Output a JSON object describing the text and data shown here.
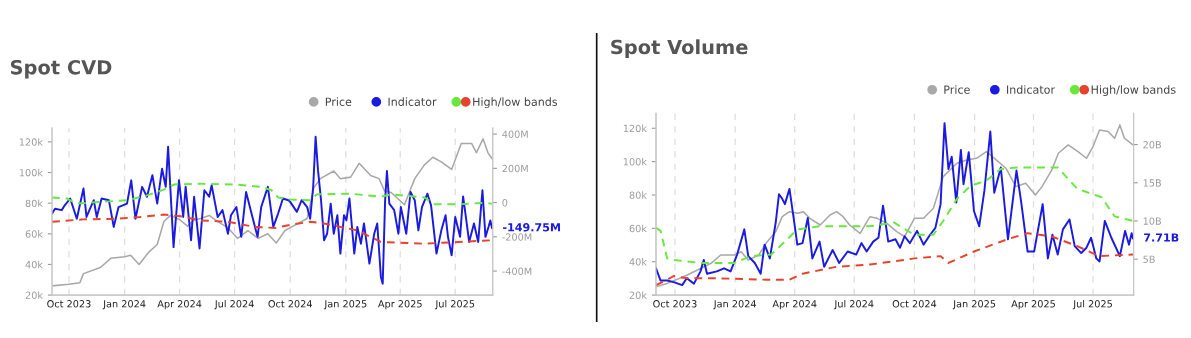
{
  "chart_data": [
    {
      "type": "line",
      "title": "Spot CVD",
      "xlim": [
        "2023-09-03",
        "2025-09-01"
      ],
      "xticks": [
        {
          "value": "2023-10-01",
          "label": "Oct 2023"
        },
        {
          "value": "2024-01-01",
          "label": "Jan 2024"
        },
        {
          "value": "2024-04-01",
          "label": "Apr 2024"
        },
        {
          "value": "2024-07-01",
          "label": "Jul 2024"
        },
        {
          "value": "2024-10-01",
          "label": "Oct 2024"
        },
        {
          "value": "2025-01-01",
          "label": "Jan 2025"
        },
        {
          "value": "2025-04-01",
          "label": "Apr 2025"
        },
        {
          "value": "2025-07-01",
          "label": "Jul 2025"
        }
      ],
      "ylim": [
        20,
        129
      ],
      "yticks": [
        {
          "value": 20,
          "label": "20k"
        },
        {
          "value": 40,
          "label": "40k"
        },
        {
          "value": 60,
          "label": "60k"
        },
        {
          "value": 80,
          "label": "80k"
        },
        {
          "value": 100,
          "label": "100k"
        },
        {
          "value": 120,
          "label": "120k"
        }
      ],
      "y2lim": [
        -540,
        435
      ],
      "y2ticks": [
        {
          "value": -400,
          "label": "-400M"
        },
        {
          "value": -200,
          "label": "-200M"
        },
        0,
        {
          "value": 200,
          "label": "200M"
        },
        {
          "value": 400,
          "label": "400M"
        }
      ],
      "grid": "x",
      "legend": "top right",
      "annotations": [
        "-149.75M"
      ],
      "series": [
        {
          "name": "Price",
          "color": "#a8a8a8",
          "x": [
            "2023-09-03",
            "2023-10-01",
            "2023-10-19",
            "2023-10-25",
            "2023-11-22",
            "2023-12-09",
            "2024-01-01",
            "2024-01-11",
            "2024-01-25",
            "2024-02-10",
            "2024-02-24",
            "2024-03-06",
            "2024-03-17",
            "2024-04-02",
            "2024-04-14",
            "2024-04-25",
            "2024-05-06",
            "2024-05-20",
            "2024-06-03",
            "2024-06-20",
            "2024-07-06",
            "2024-07-23",
            "2024-08-09",
            "2024-08-25",
            "2024-09-08",
            "2024-09-22",
            "2024-10-01",
            "2024-10-29",
            "2024-11-09",
            "2024-11-20",
            "2024-12-12",
            "2024-12-23",
            "2025-01-09",
            "2025-01-23",
            "2025-02-11",
            "2025-02-25",
            "2025-03-06",
            "2025-03-17",
            "2025-04-08",
            "2025-04-25",
            "2025-05-11",
            "2025-05-25",
            "2025-06-08",
            "2025-06-25",
            "2025-07-11",
            "2025-07-28",
            "2025-08-05",
            "2025-08-16",
            "2025-08-24",
            "2025-08-31"
          ],
          "values": [
            26,
            27,
            28,
            34,
            38,
            44,
            45,
            46,
            40,
            48,
            53,
            68,
            72,
            69,
            65,
            69,
            70,
            72,
            68,
            64,
            57,
            62,
            57,
            60,
            54,
            62,
            64,
            70,
            90,
            96,
            101,
            96,
            97,
            106,
            98,
            96,
            88,
            87,
            79,
            96,
            105,
            110,
            107,
            102,
            119,
            119,
            113,
            122,
            113,
            109
          ]
        },
        {
          "name": "Indicator",
          "color": "#1a1ae0",
          "axis": "y2",
          "x": [
            "2023-09-03",
            "2023-09-08",
            "2023-09-19",
            "2023-09-24",
            "2023-10-03",
            "2023-10-14",
            "2023-10-25",
            "2023-10-30",
            "2023-11-11",
            "2023-11-16",
            "2023-11-24",
            "2023-12-06",
            "2023-12-14",
            "2023-12-22",
            "2024-01-05",
            "2024-01-12",
            "2024-01-19",
            "2024-01-30",
            "2024-02-07",
            "2024-02-16",
            "2024-02-24",
            "2024-03-03",
            "2024-03-09",
            "2024-03-13",
            "2024-03-22",
            "2024-03-31",
            "2024-04-07",
            "2024-04-11",
            "2024-04-20",
            "2024-04-25",
            "2024-05-04",
            "2024-05-12",
            "2024-05-20",
            "2024-05-24",
            "2024-06-03",
            "2024-06-11",
            "2024-06-20",
            "2024-06-25",
            "2024-07-04",
            "2024-07-12",
            "2024-07-20",
            "2024-07-29",
            "2024-08-08",
            "2024-08-14",
            "2024-08-25",
            "2024-09-03",
            "2024-09-11",
            "2024-09-19",
            "2024-09-28",
            "2024-10-01",
            "2024-10-12",
            "2024-10-20",
            "2024-10-29",
            "2024-11-03",
            "2024-11-08",
            "2024-11-12",
            "2024-11-16",
            "2024-11-21",
            "2024-11-26",
            "2024-12-01",
            "2024-12-07",
            "2024-12-12",
            "2024-12-18",
            "2024-12-23",
            "2024-12-29",
            "2025-01-02",
            "2025-01-07",
            "2025-01-15",
            "2025-01-20",
            "2025-01-26",
            "2025-01-31",
            "2025-02-09",
            "2025-02-17",
            "2025-02-22",
            "2025-02-28",
            "2025-03-03",
            "2025-03-07",
            "2025-03-10",
            "2025-03-14",
            "2025-03-22",
            "2025-03-29",
            "2025-04-02",
            "2025-04-11",
            "2025-04-18",
            "2025-04-25",
            "2025-05-01",
            "2025-05-07",
            "2025-05-16",
            "2025-05-22",
            "2025-05-31",
            "2025-06-08",
            "2025-06-15",
            "2025-06-19",
            "2025-06-25",
            "2025-07-01",
            "2025-07-09",
            "2025-07-14",
            "2025-07-20",
            "2025-07-24",
            "2025-08-01",
            "2025-08-08",
            "2025-08-15",
            "2025-08-20",
            "2025-08-25",
            "2025-08-28",
            "2025-08-31"
          ],
          "values": [
            -64,
            -36,
            -44,
            -16,
            24,
            -94,
            82,
            -84,
            14,
            -84,
            24,
            14,
            -142,
            -26,
            -6,
            130,
            -94,
            92,
            34,
            160,
            -6,
            198,
            92,
            326,
            -260,
            130,
            -84,
            92,
            -220,
            34,
            -268,
            72,
            34,
            102,
            -84,
            -44,
            -182,
            -74,
            -26,
            -200,
            62,
            -64,
            -200,
            -26,
            92,
            -142,
            -64,
            24,
            14,
            4,
            -54,
            14,
            -26,
            -94,
            92,
            384,
            188,
            14,
            -220,
            -182,
            -6,
            -182,
            -74,
            -298,
            -74,
            -104,
            24,
            -298,
            -142,
            -240,
            -122,
            -356,
            -182,
            -122,
            -434,
            -474,
            14,
            184,
            -6,
            -44,
            -182,
            -26,
            -182,
            62,
            14,
            -162,
            -26,
            52,
            -16,
            -298,
            -162,
            -74,
            -200,
            -308,
            -84,
            -200,
            36,
            -122,
            -230,
            -122,
            -230,
            72,
            -200,
            -142,
            -104,
            -149.75
          ]
        },
        {
          "color": "#66e83c",
          "axis": "y2",
          "line_style": "dashed",
          "x": [
            "2023-09-03",
            "2023-09-27",
            "2023-10-14",
            "2023-11-22",
            "2024-01-05",
            "2024-02-07",
            "2024-03-06",
            "2024-03-23",
            "2024-05-06",
            "2024-07-01",
            "2024-08-14",
            "2024-08-31",
            "2024-09-11",
            "2024-10-01",
            "2024-11-03",
            "2024-11-14",
            "2025-01-09",
            "2025-02-28",
            "2025-03-17",
            "2025-05-11",
            "2025-05-28",
            "2025-07-06",
            "2025-08-14",
            "2025-08-31"
          ],
          "values": [
            30,
            24,
            -6,
            4,
            14,
            42,
            76,
            106,
            110,
            106,
            92,
            72,
            30,
            18,
            14,
            48,
            52,
            34,
            48,
            30,
            -10,
            -10,
            -2,
            -6
          ]
        },
        {
          "name": "High/low bands",
          "color": "#e8412c",
          "axis": "y2",
          "line_style": "dashed",
          "x": [
            "2023-09-03",
            "2023-10-25",
            "2023-12-19",
            "2024-01-27",
            "2024-03-06",
            "2024-04-03",
            "2024-05-06",
            "2024-06-20",
            "2024-08-03",
            "2024-09-06",
            "2024-10-01",
            "2024-11-03",
            "2024-11-26",
            "2025-01-20",
            "2025-02-28",
            "2025-05-11",
            "2025-07-06",
            "2025-08-31"
          ],
          "values": [
            -112,
            -98,
            -94,
            -84,
            -70,
            -80,
            -104,
            -112,
            -142,
            -148,
            -130,
            -112,
            -122,
            -162,
            -230,
            -240,
            -230,
            -220
          ]
        }
      ]
    },
    {
      "type": "line",
      "title": "Spot Volume",
      "xlim": [
        "2023-09-02",
        "2025-09-01"
      ],
      "xticks": [
        {
          "value": "2023-10-01",
          "label": "Oct 2023"
        },
        {
          "value": "2024-01-01",
          "label": "Jan 2024"
        },
        {
          "value": "2024-04-01",
          "label": "Apr 2024"
        },
        {
          "value": "2024-07-01",
          "label": "Jul 2024"
        },
        {
          "value": "2024-10-01",
          "label": "Oct 2024"
        },
        {
          "value": "2025-01-01",
          "label": "Jan 2025"
        },
        {
          "value": "2025-04-01",
          "label": "Apr 2025"
        },
        {
          "value": "2025-07-01",
          "label": "Jul 2025"
        }
      ],
      "ylim": [
        20,
        129
      ],
      "yticks": [
        {
          "value": 20,
          "label": "20k"
        },
        {
          "value": 40,
          "label": "40k"
        },
        {
          "value": 60,
          "label": "60k"
        },
        {
          "value": 80,
          "label": "80k"
        },
        {
          "value": 100,
          "label": "100k"
        },
        {
          "value": 120,
          "label": "120k"
        }
      ],
      "y2lim": [
        0.3,
        24.1
      ],
      "y2ticks": [
        {
          "value": 5,
          "label": "5B"
        },
        {
          "value": 10,
          "label": "10B"
        },
        {
          "value": 15,
          "label": "15B"
        },
        {
          "value": 20,
          "label": "20B"
        }
      ],
      "grid": "x",
      "legend": "top right",
      "annotations": [
        "7.71B"
      ],
      "series": [
        {
          "name": "Price",
          "color": "#a8a8a8",
          "x": [
            "2023-09-02",
            "2023-09-19",
            "2023-10-14",
            "2023-10-30",
            "2023-11-25",
            "2023-12-10",
            "2023-12-31",
            "2024-01-10",
            "2024-01-21",
            "2024-02-06",
            "2024-02-19",
            "2024-03-03",
            "2024-03-13",
            "2024-03-24",
            "2024-04-06",
            "2024-04-14",
            "2024-04-24",
            "2024-05-10",
            "2024-05-25",
            "2024-06-04",
            "2024-06-14",
            "2024-06-24",
            "2024-07-10",
            "2024-07-25",
            "2024-08-05",
            "2024-08-20",
            "2024-09-04",
            "2024-09-16",
            "2024-10-01",
            "2024-10-15",
            "2024-10-30",
            "2024-11-14",
            "2024-12-05",
            "2024-12-20",
            "2025-01-04",
            "2025-01-19",
            "2025-02-03",
            "2025-02-18",
            "2025-03-05",
            "2025-03-20",
            "2025-04-04",
            "2025-04-14",
            "2025-04-29",
            "2025-05-09",
            "2025-05-24",
            "2025-06-08",
            "2025-06-21",
            "2025-07-01",
            "2025-07-11",
            "2025-07-24",
            "2025-08-03",
            "2025-08-11",
            "2025-08-18",
            "2025-08-31"
          ],
          "values": [
            25,
            27,
            31,
            34,
            39,
            44,
            44,
            46,
            41,
            44,
            52,
            58,
            67,
            70,
            69,
            70,
            66,
            62,
            68,
            70,
            67,
            62,
            57,
            67,
            66,
            63,
            58,
            55,
            66,
            66,
            72,
            91,
            99,
            101,
            102,
            106,
            101,
            96,
            85,
            87,
            80,
            85,
            95,
            105,
            110,
            106,
            102,
            109,
            119,
            118,
            114,
            122,
            114,
            110
          ]
        },
        {
          "name": "Indicator",
          "color": "#1a1ae0",
          "axis": "y2",
          "x": [
            "2023-09-02",
            "2023-09-09",
            "2023-09-19",
            "2023-09-29",
            "2023-10-12",
            "2023-10-19",
            "2023-10-30",
            "2023-11-09",
            "2023-11-14",
            "2023-11-19",
            "2023-12-04",
            "2023-12-15",
            "2023-12-25",
            "2024-01-04",
            "2024-01-15",
            "2024-01-21",
            "2024-01-31",
            "2024-02-09",
            "2024-02-15",
            "2024-02-23",
            "2024-03-03",
            "2024-03-08",
            "2024-03-13",
            "2024-03-17",
            "2024-03-24",
            "2024-03-31",
            "2024-04-05",
            "2024-04-13",
            "2024-04-21",
            "2024-04-28",
            "2024-05-09",
            "2024-05-16",
            "2024-05-29",
            "2024-06-08",
            "2024-06-21",
            "2024-07-04",
            "2024-07-12",
            "2024-07-20",
            "2024-07-30",
            "2024-08-07",
            "2024-08-14",
            "2024-08-22",
            "2024-09-02",
            "2024-09-09",
            "2024-09-16",
            "2024-09-24",
            "2024-10-05",
            "2024-10-15",
            "2024-10-25",
            "2024-11-02",
            "2024-11-10",
            "2024-11-16",
            "2024-11-22",
            "2024-11-27",
            "2024-12-04",
            "2024-12-11",
            "2024-12-15",
            "2024-12-23",
            "2024-12-31",
            "2025-01-08",
            "2025-01-16",
            "2025-01-25",
            "2025-01-31",
            "2025-02-10",
            "2025-02-21",
            "2025-03-06",
            "2025-03-13",
            "2025-03-23",
            "2025-04-02",
            "2025-04-15",
            "2025-04-23",
            "2025-04-30",
            "2025-05-08",
            "2025-05-16",
            "2025-05-26",
            "2025-06-03",
            "2025-06-13",
            "2025-06-21",
            "2025-06-28",
            "2025-07-06",
            "2025-07-11",
            "2025-07-19",
            "2025-07-29",
            "2025-08-11",
            "2025-08-19",
            "2025-08-25",
            "2025-08-29",
            "2025-08-31"
          ],
          "values": [
            3.8,
            2.2,
            2.2,
            2.0,
            1.6,
            2.5,
            1.8,
            3.4,
            4.9,
            3.1,
            3.4,
            3.8,
            3.4,
            5.6,
            8.9,
            5.4,
            4.5,
            3.1,
            6.9,
            5.1,
            9.8,
            13.5,
            12.9,
            12.2,
            14.2,
            10.0,
            6.9,
            7.1,
            10.4,
            5.1,
            7.3,
            4.0,
            6.2,
            4.5,
            6.0,
            5.6,
            7.1,
            6.0,
            7.3,
            7.8,
            12.0,
            7.3,
            7.6,
            6.5,
            8.0,
            7.1,
            8.7,
            6.9,
            8.2,
            9.1,
            12.2,
            22.8,
            16.8,
            18.4,
            12.4,
            19.3,
            14.8,
            19.0,
            11.3,
            9.3,
            14.0,
            21.7,
            13.7,
            17.0,
            7.6,
            16.6,
            12.6,
            6.0,
            6.0,
            12.2,
            5.1,
            8.2,
            5.6,
            8.9,
            10.2,
            6.7,
            5.8,
            6.5,
            7.8,
            5.1,
            4.7,
            10.0,
            7.8,
            5.4,
            8.7,
            6.9,
            8.4,
            7.71
          ]
        },
        {
          "color": "#66e83c",
          "axis": "y2",
          "line_style": "dashed",
          "x": [
            "2023-09-02",
            "2023-09-09",
            "2023-09-19",
            "2023-09-29",
            "2023-11-09",
            "2023-12-31",
            "2024-01-25",
            "2024-02-25",
            "2024-03-17",
            "2024-04-05",
            "2024-05-09",
            "2024-07-25",
            "2024-08-31",
            "2024-09-13",
            "2024-10-01",
            "2024-10-30",
            "2024-11-14",
            "2024-12-05",
            "2024-12-26",
            "2025-01-19",
            "2025-02-10",
            "2025-03-07",
            "2025-04-02",
            "2025-05-08",
            "2025-06-07",
            "2025-07-14",
            "2025-08-03",
            "2025-08-31"
          ],
          "values": [
            9.1,
            8.7,
            5.1,
            4.9,
            4.5,
            4.5,
            5.4,
            5.6,
            7.3,
            8.9,
            9.3,
            9.3,
            9.8,
            9.1,
            8.2,
            8.2,
            10.0,
            12.9,
            14.6,
            15.3,
            16.8,
            17.0,
            17.0,
            17.0,
            14.2,
            13.1,
            10.6,
            10.0
          ]
        },
        {
          "name": "High/low bands",
          "color": "#e8412c",
          "axis": "y2",
          "line_style": "dashed",
          "x": [
            "2023-09-02",
            "2023-09-19",
            "2023-09-29",
            "2023-10-19",
            "2023-12-04",
            "2024-02-19",
            "2024-03-24",
            "2024-04-13",
            "2024-06-04",
            "2024-07-25",
            "2024-09-16",
            "2024-10-01",
            "2024-11-10",
            "2024-11-22",
            "2024-12-31",
            "2025-02-20",
            "2025-03-23",
            "2025-04-28",
            "2025-06-07",
            "2025-07-10",
            "2025-08-31"
          ],
          "values": [
            1.6,
            2.3,
            2.8,
            2.5,
            2.5,
            2.3,
            2.3,
            3.1,
            4.0,
            4.3,
            4.9,
            5.1,
            5.4,
            4.5,
            6.0,
            7.6,
            8.4,
            8.0,
            6.7,
            5.4,
            5.6
          ]
        }
      ]
    }
  ]
}
